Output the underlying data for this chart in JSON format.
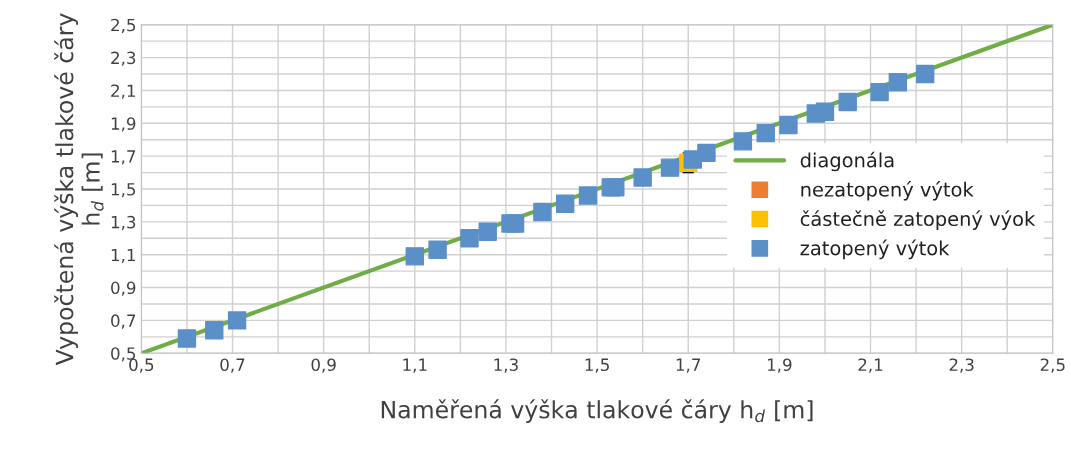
{
  "chart_data": {
    "type": "scatter",
    "xlabel": "Naměřená výška tlakové čáry h$_{d}$ [m]",
    "ylabel": "Vypočtená výška tlakové čáry\nh$_{d}$ [m]",
    "xlim": [
      0.5,
      2.5
    ],
    "ylim": [
      0.5,
      2.5
    ],
    "xticks": [
      {
        "value": 0.5,
        "label": "0,5"
      },
      {
        "value": 0.6,
        "label": null
      },
      {
        "value": 0.7,
        "label": "0,7"
      },
      {
        "value": 0.8,
        "label": null
      },
      {
        "value": 0.9,
        "label": "0,9"
      },
      {
        "value": 1.0,
        "label": null
      },
      {
        "value": 1.1,
        "label": "1,1"
      },
      {
        "value": 1.2,
        "label": null
      },
      {
        "value": 1.3,
        "label": "1,3"
      },
      {
        "value": 1.4,
        "label": null
      },
      {
        "value": 1.5,
        "label": "1,5"
      },
      {
        "value": 1.6,
        "label": null
      },
      {
        "value": 1.7,
        "label": "1,7"
      },
      {
        "value": 1.8,
        "label": null
      },
      {
        "value": 1.9,
        "label": "1,9"
      },
      {
        "value": 2.0,
        "label": null
      },
      {
        "value": 2.1,
        "label": "2,1"
      },
      {
        "value": 2.2,
        "label": null
      },
      {
        "value": 2.3,
        "label": "2,3"
      },
      {
        "value": 2.4,
        "label": null
      },
      {
        "value": 2.5,
        "label": "2,5"
      }
    ],
    "yticks": [
      {
        "value": 0.5,
        "label": "0,5"
      },
      {
        "value": 0.6,
        "label": null
      },
      {
        "value": 0.7,
        "label": "0,7"
      },
      {
        "value": 0.8,
        "label": null
      },
      {
        "value": 0.9,
        "label": "0,9"
      },
      {
        "value": 1.0,
        "label": null
      },
      {
        "value": 1.1,
        "label": "1,1"
      },
      {
        "value": 1.2,
        "label": null
      },
      {
        "value": 1.3,
        "label": "1,3"
      },
      {
        "value": 1.4,
        "label": null
      },
      {
        "value": 1.5,
        "label": "1,5"
      },
      {
        "value": 1.6,
        "label": null
      },
      {
        "value": 1.7,
        "label": "1,7"
      },
      {
        "value": 1.8,
        "label": null
      },
      {
        "value": 1.9,
        "label": "1,9"
      },
      {
        "value": 2.0,
        "label": null
      },
      {
        "value": 2.1,
        "label": "2,1"
      },
      {
        "value": 2.2,
        "label": null
      },
      {
        "value": 2.3,
        "label": "2,3"
      },
      {
        "value": 2.4,
        "label": null
      },
      {
        "value": 2.5,
        "label": "2,5"
      }
    ],
    "grid": true,
    "legend": "right",
    "series": [
      {
        "name": "diagonála",
        "type": "line",
        "marker": "none",
        "color": "#70ad47",
        "x": [
          0.5,
          2.5
        ],
        "values": [
          0.5,
          2.5
        ]
      },
      {
        "name": "nezatopený výtok",
        "marker": "square",
        "color": "#ed7d31"
      },
      {
        "name": "částečně zatopený výok",
        "marker": "square",
        "color": "#ffc000",
        "x": [
          1.7
        ],
        "values": [
          1.66
        ],
        "errors": [
          [
            1.6,
            1.72
          ]
        ]
      },
      {
        "name": "zatopený výtok",
        "marker": "square",
        "color": "#5b8fc7",
        "x": [
          0.6,
          0.66,
          0.71,
          1.1,
          1.15,
          1.22,
          1.26,
          1.31,
          1.32,
          1.38,
          1.43,
          1.48,
          1.53,
          1.54,
          1.6,
          1.66,
          1.71,
          1.74,
          1.82,
          1.87,
          1.92,
          1.98,
          2.0,
          2.05,
          2.12,
          2.16,
          2.22
        ],
        "values": [
          0.59,
          0.64,
          0.7,
          1.09,
          1.13,
          1.2,
          1.24,
          1.29,
          1.29,
          1.36,
          1.41,
          1.46,
          1.51,
          1.51,
          1.57,
          1.63,
          1.68,
          1.72,
          1.79,
          1.84,
          1.89,
          1.96,
          1.97,
          2.03,
          2.09,
          2.15,
          2.2
        ]
      }
    ]
  }
}
